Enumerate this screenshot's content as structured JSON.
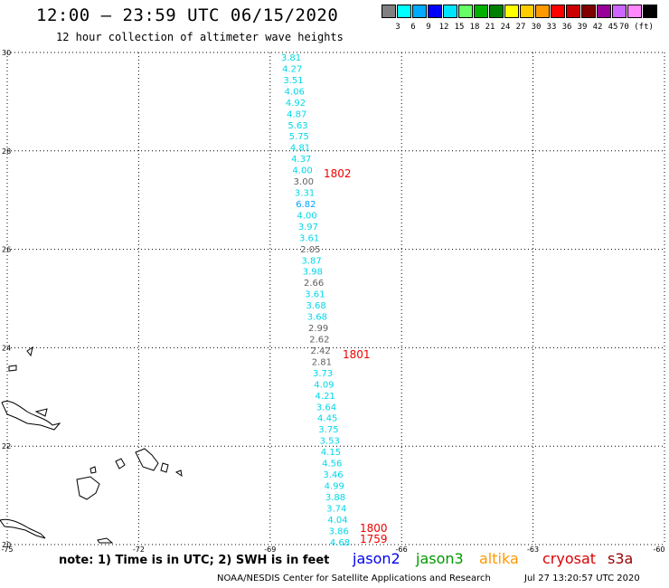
{
  "header": {
    "title": "12:00 – 23:59 UTC 06/15/2020",
    "subtitle": "12 hour collection of altimeter wave heights"
  },
  "legend": {
    "colors": [
      "#808080",
      "#00ffff",
      "#00aaff",
      "#0000ff",
      "#00e5ff",
      "#66ff66",
      "#00b000",
      "#008000",
      "#ffff00",
      "#ffcc00",
      "#ff9900",
      "#ff0000",
      "#cc0000",
      "#800000",
      "#990099",
      "#cc66ff",
      "#ff88ff",
      "#000000"
    ],
    "labels": [
      "3",
      "6",
      "9",
      "12",
      "15",
      "18",
      "21",
      "24",
      "27",
      "30",
      "33",
      "36",
      "39",
      "42",
      "45",
      "70 (ft)"
    ]
  },
  "axes": {
    "lon_labels": [
      "-75",
      "-72",
      "-69",
      "-66",
      "-63",
      "-60"
    ],
    "lat_labels": [
      "20",
      "22",
      "24",
      "26",
      "28",
      "30"
    ]
  },
  "chart_data": {
    "type": "scatter",
    "xlim": [
      -75,
      -60
    ],
    "ylim": [
      20,
      30
    ],
    "grid": true,
    "wave_heights": [
      "3.81",
      "4.27",
      "3.51",
      "4.06",
      "4.92",
      "4.87",
      "5.63",
      "5.75",
      "4.81",
      "4.37",
      "4.00",
      "3.00",
      "3.31",
      "6.82",
      "4.00",
      "3.97",
      "3.61",
      "2.05",
      "3.87",
      "3.98",
      "2.66",
      "3.61",
      "3.68",
      "3.68",
      "2.99",
      "2.62",
      "2.42",
      "2.81",
      "3.73",
      "4.09",
      "4.21",
      "3.64",
      "4.45",
      "3.75",
      "3.53",
      "4.15",
      "4.56",
      "3.46",
      "4.99",
      "3.88",
      "3.74",
      "4.04",
      "3.86",
      "4.68"
    ],
    "colors": [
      "cyan",
      "cyan",
      "cyan",
      "cyan",
      "cyan",
      "cyan",
      "cyan",
      "cyan",
      "cyan",
      "cyan",
      "cyan",
      "gray",
      "cyan",
      "blue",
      "cyan",
      "cyan",
      "cyan",
      "gray",
      "cyan",
      "cyan",
      "gray",
      "cyan",
      "cyan",
      "cyan",
      "gray",
      "gray",
      "gray",
      "gray",
      "cyan",
      "cyan",
      "cyan",
      "cyan",
      "cyan",
      "cyan",
      "cyan",
      "cyan",
      "cyan",
      "cyan",
      "cyan",
      "cyan",
      "cyan",
      "cyan",
      "cyan",
      "cyan"
    ],
    "time_labels": [
      "1802",
      "1801",
      "1800",
      "1759"
    ]
  },
  "footer": {
    "note": "note:  1) Time is in UTC;  2) SWH is in feet",
    "satellites": [
      {
        "name": "jason2",
        "color": "#0000ee"
      },
      {
        "name": "jason3",
        "color": "#009900"
      },
      {
        "name": "altika",
        "color": "#ff9900"
      },
      {
        "name": "cryosat",
        "color": "#dd0000"
      },
      {
        "name": "s3a",
        "color": "#990000"
      }
    ],
    "credit": "NOAA/NESDIS Center for Satellite Applications and Research",
    "stamp": "Jul 27 13:20:57 UTC 2020"
  }
}
